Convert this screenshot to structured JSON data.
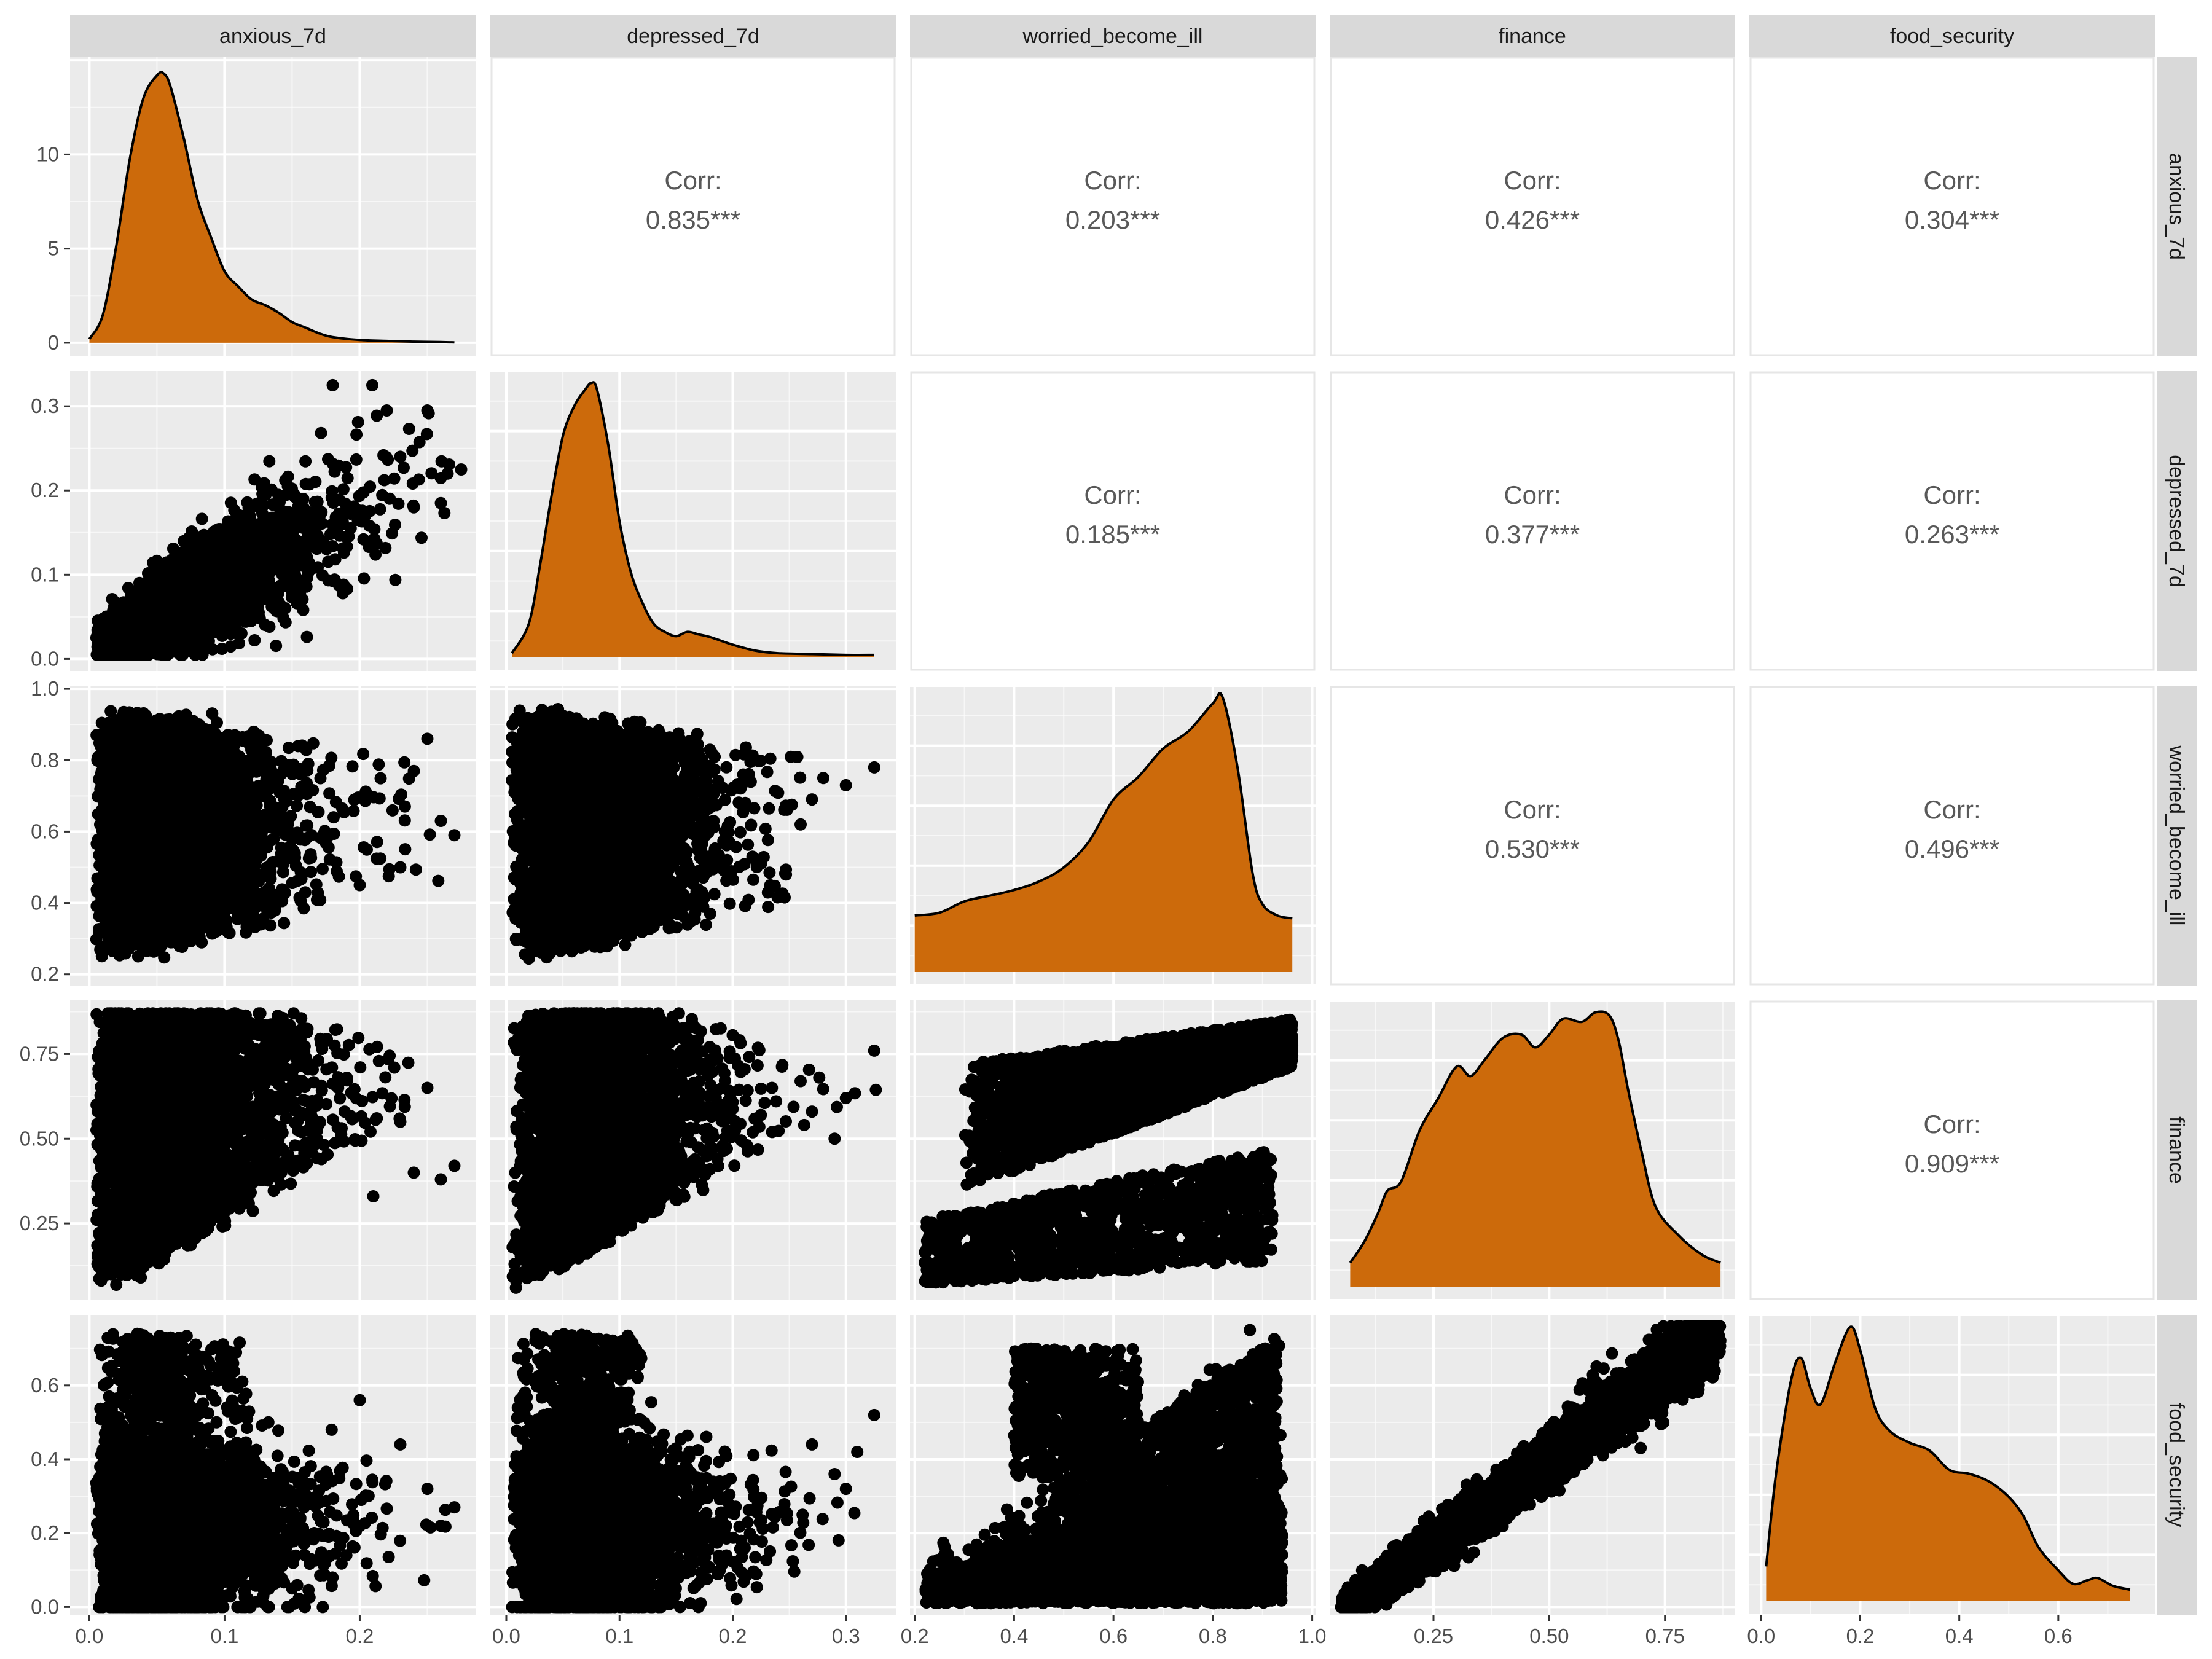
{
  "chart_data": {
    "type": "scatter-matrix",
    "variables": [
      "anxious_7d",
      "depressed_7d",
      "worried_become_ill",
      "finance",
      "food_security"
    ],
    "colors": {
      "panel_bg": "#ebebeb",
      "grid": "#ffffff",
      "strip_bg": "#d9d9d9",
      "density_fill": "#cc6a0b",
      "points": "#000000",
      "corr_text": "#595959",
      "corr_panel_border": "#e6e6e6"
    },
    "corr_label": "Corr:",
    "correlations": [
      {
        "row": 0,
        "col": 1,
        "value": "0.835***"
      },
      {
        "row": 0,
        "col": 2,
        "value": "0.203***"
      },
      {
        "row": 0,
        "col": 3,
        "value": "0.426***"
      },
      {
        "row": 0,
        "col": 4,
        "value": "0.304***"
      },
      {
        "row": 1,
        "col": 2,
        "value": "0.185***"
      },
      {
        "row": 1,
        "col": 3,
        "value": "0.377***"
      },
      {
        "row": 1,
        "col": 4,
        "value": "0.263***"
      },
      {
        "row": 2,
        "col": 3,
        "value": "0.530***"
      },
      {
        "row": 2,
        "col": 4,
        "value": "0.496***"
      },
      {
        "row": 3,
        "col": 4,
        "value": "0.909***"
      }
    ],
    "x_axes": [
      {
        "range": [
          -0.0143,
          0.2857
        ],
        "ticks": [
          0.0,
          0.1,
          0.2
        ],
        "labels": [
          "0.0",
          "0.1",
          "0.2"
        ]
      },
      {
        "range": [
          -0.0141,
          0.3441
        ],
        "ticks": [
          0.0,
          0.1,
          0.2,
          0.3
        ],
        "labels": [
          "0.0",
          "0.1",
          "0.2",
          "0.3"
        ]
      },
      {
        "range": [
          0.1905,
          1.0067
        ],
        "ticks": [
          0.2,
          0.4,
          0.6,
          0.8,
          1.0
        ],
        "labels": [
          "0.2",
          "0.4",
          "0.6",
          "0.8",
          "1.0"
        ]
      },
      {
        "range": [
          0.0257,
          0.9017
        ],
        "ticks": [
          0.25,
          0.5,
          0.75
        ],
        "labels": [
          "0.25",
          "0.50",
          "0.75"
        ]
      },
      {
        "range": [
          -0.024,
          0.795
        ],
        "ticks": [
          0.0,
          0.2,
          0.4,
          0.6
        ],
        "labels": [
          "0.0",
          "0.2",
          "0.4",
          "0.6"
        ]
      }
    ],
    "y_axes": [
      {
        "range": [
          -0.72,
          15.2
        ],
        "ticks": [
          0,
          5,
          10
        ],
        "labels": [
          "0",
          "5",
          "10"
        ]
      },
      {
        "range": [
          -0.0143,
          0.3417
        ],
        "ticks": [
          0.0,
          0.1,
          0.2,
          0.3
        ],
        "labels": [
          "0.0",
          "0.1",
          "0.2",
          "0.3"
        ]
      },
      {
        "range": [
          0.1685,
          1.0088
        ],
        "ticks": [
          0.2,
          0.4,
          0.6,
          0.8,
          1.0
        ],
        "labels": [
          "0.2",
          "0.4",
          "0.6",
          "0.8",
          "1.0"
        ]
      },
      {
        "range": [
          0.0235,
          0.9085
        ],
        "ticks": [
          0.25,
          0.5,
          0.75
        ],
        "labels": [
          "0.25",
          "0.50",
          "0.75"
        ]
      },
      {
        "range": [
          -0.021,
          0.791
        ],
        "ticks": [
          0.0,
          0.2,
          0.4,
          0.6
        ],
        "labels": [
          "0.0",
          "0.2",
          "0.4",
          "0.6"
        ]
      }
    ],
    "densities": [
      {
        "var": "anxious_7d",
        "x": [
          0.0,
          0.01,
          0.02,
          0.03,
          0.04,
          0.05,
          0.055,
          0.06,
          0.07,
          0.08,
          0.09,
          0.1,
          0.11,
          0.12,
          0.13,
          0.14,
          0.15,
          0.16,
          0.17,
          0.18,
          0.2,
          0.22,
          0.24,
          0.26,
          0.27
        ],
        "y": [
          0.2,
          1.5,
          5.2,
          9.8,
          13.0,
          14.2,
          14.3,
          13.6,
          10.8,
          7.6,
          5.6,
          3.8,
          3.0,
          2.3,
          2.0,
          1.6,
          1.1,
          0.8,
          0.5,
          0.3,
          0.15,
          0.1,
          0.06,
          0.04,
          0.02
        ]
      },
      {
        "var": "depressed_7d",
        "x": [
          0.005,
          0.02,
          0.03,
          0.04,
          0.05,
          0.06,
          0.07,
          0.075,
          0.08,
          0.09,
          0.1,
          0.11,
          0.12,
          0.13,
          0.14,
          0.15,
          0.16,
          0.17,
          0.18,
          0.2,
          0.22,
          0.24,
          0.27,
          0.3,
          0.325
        ],
        "y": [
          0.005,
          0.04,
          0.11,
          0.19,
          0.26,
          0.295,
          0.315,
          0.322,
          0.315,
          0.25,
          0.16,
          0.1,
          0.065,
          0.04,
          0.03,
          0.025,
          0.03,
          0.027,
          0.024,
          0.015,
          0.008,
          0.005,
          0.004,
          0.003,
          0.003
        ]
      },
      {
        "var": "worried_become_ill",
        "x": [
          0.2,
          0.25,
          0.3,
          0.35,
          0.4,
          0.45,
          0.5,
          0.55,
          0.6,
          0.65,
          0.7,
          0.75,
          0.8,
          0.82,
          0.85,
          0.88,
          0.9,
          0.93,
          0.96
        ],
        "y": [
          0.2,
          0.21,
          0.25,
          0.27,
          0.29,
          0.32,
          0.37,
          0.46,
          0.61,
          0.69,
          0.79,
          0.85,
          0.95,
          0.97,
          0.72,
          0.35,
          0.24,
          0.2,
          0.19
        ]
      },
      {
        "var": "finance",
        "x": [
          0.07,
          0.1,
          0.13,
          0.15,
          0.18,
          0.22,
          0.26,
          0.3,
          0.33,
          0.36,
          0.4,
          0.44,
          0.47,
          0.5,
          0.53,
          0.57,
          0.6,
          0.63,
          0.65,
          0.67,
          0.7,
          0.73,
          0.78,
          0.83,
          0.87
        ],
        "y": [
          0.075,
          0.14,
          0.23,
          0.3,
          0.33,
          0.49,
          0.59,
          0.69,
          0.66,
          0.71,
          0.78,
          0.79,
          0.75,
          0.79,
          0.84,
          0.83,
          0.86,
          0.85,
          0.77,
          0.62,
          0.42,
          0.25,
          0.16,
          0.1,
          0.075
        ]
      },
      {
        "var": "food_security",
        "x": [
          0.01,
          0.03,
          0.06,
          0.08,
          0.1,
          0.12,
          0.15,
          0.18,
          0.2,
          0.23,
          0.26,
          0.3,
          0.34,
          0.38,
          0.42,
          0.46,
          0.5,
          0.53,
          0.56,
          0.6,
          0.63,
          0.66,
          0.68,
          0.71,
          0.745
        ],
        "y": [
          0.09,
          0.33,
          0.57,
          0.63,
          0.55,
          0.51,
          0.62,
          0.71,
          0.65,
          0.5,
          0.44,
          0.41,
          0.39,
          0.34,
          0.33,
          0.31,
          0.27,
          0.22,
          0.14,
          0.08,
          0.045,
          0.055,
          0.06,
          0.04,
          0.03
        ]
      }
    ],
    "scatter_clouds": [
      {
        "row": 1,
        "col": 0,
        "n": 4200,
        "seed": 11,
        "model": "linear_hetero",
        "x_range": [
          0.005,
          0.27
        ],
        "x_mode": 0.055,
        "x_tail": 0.05,
        "intercept": 0.012,
        "slope": 0.83,
        "spread": 0.03,
        "y_clip": [
          0.005,
          0.325
        ],
        "outliers": [
          [
            0.24,
            0.18
          ],
          [
            0.265,
            0.22
          ],
          [
            0.275,
            0.225
          ],
          [
            0.26,
            0.185
          ],
          [
            0.22,
            0.295
          ],
          [
            0.18,
            0.325
          ],
          [
            0.25,
            0.295
          ],
          [
            0.23,
            0.24
          ]
        ]
      },
      {
        "row": 2,
        "col": 0,
        "n": 4600,
        "seed": 12,
        "model": "wedge",
        "x_range": [
          0.005,
          0.27
        ],
        "x_mode": 0.05,
        "x_tail": 0.045,
        "y_center": 0.62,
        "y_spread_low": 0.36,
        "y_spread_high": 0.3,
        "y_clip": [
          0.2,
          0.95
        ],
        "outliers": [
          [
            0.27,
            0.59
          ],
          [
            0.25,
            0.86
          ],
          [
            0.26,
            0.63
          ],
          [
            0.24,
            0.77
          ],
          [
            0.23,
            0.5
          ],
          [
            0.2,
            0.45
          ]
        ]
      },
      {
        "row": 2,
        "col": 1,
        "n": 4600,
        "seed": 13,
        "model": "wedge",
        "x_range": [
          0.005,
          0.33
        ],
        "x_mode": 0.065,
        "x_tail": 0.05,
        "y_center": 0.62,
        "y_spread_low": 0.36,
        "y_spread_high": 0.3,
        "y_clip": [
          0.2,
          0.95
        ],
        "outliers": [
          [
            0.325,
            0.78
          ],
          [
            0.3,
            0.73
          ],
          [
            0.28,
            0.75
          ],
          [
            0.27,
            0.69
          ],
          [
            0.26,
            0.62
          ]
        ]
      },
      {
        "row": 3,
        "col": 0,
        "n": 4600,
        "seed": 14,
        "model": "fan",
        "x_range": [
          0.005,
          0.27
        ],
        "x_mode": 0.05,
        "x_tail": 0.045,
        "base": 0.05,
        "slope_low": 2.2,
        "top": 0.86,
        "y_clip": [
          0.06,
          0.87
        ],
        "outliers": [
          [
            0.27,
            0.42
          ],
          [
            0.26,
            0.38
          ],
          [
            0.25,
            0.65
          ],
          [
            0.23,
            0.55
          ],
          [
            0.24,
            0.4
          ],
          [
            0.21,
            0.33
          ]
        ]
      },
      {
        "row": 3,
        "col": 1,
        "n": 4600,
        "seed": 15,
        "model": "fan",
        "x_range": [
          0.005,
          0.33
        ],
        "x_mode": 0.065,
        "x_tail": 0.05,
        "base": 0.05,
        "slope_low": 1.9,
        "top": 0.86,
        "y_clip": [
          0.06,
          0.87
        ],
        "outliers": [
          [
            0.325,
            0.76
          ],
          [
            0.3,
            0.62
          ],
          [
            0.29,
            0.5
          ],
          [
            0.27,
            0.58
          ],
          [
            0.26,
            0.67
          ]
        ]
      },
      {
        "row": 3,
        "col": 2,
        "n": 4600,
        "seed": 16,
        "model": "two_band",
        "x_range": [
          0.2,
          0.96
        ],
        "y_clip": [
          0.06,
          0.87
        ]
      },
      {
        "row": 4,
        "col": 0,
        "n": 4600,
        "seed": 17,
        "model": "lowfan",
        "x_range": [
          0.005,
          0.27
        ],
        "x_mode": 0.05,
        "x_tail": 0.045,
        "y_center": 0.22,
        "y_spread": 0.25,
        "y_clip": [
          0.0,
          0.75
        ],
        "outliers": [
          [
            0.27,
            0.27
          ],
          [
            0.26,
            0.22
          ],
          [
            0.25,
            0.32
          ],
          [
            0.23,
            0.44
          ],
          [
            0.2,
            0.56
          ]
        ]
      },
      {
        "row": 4,
        "col": 1,
        "n": 4600,
        "seed": 18,
        "model": "lowfan",
        "x_range": [
          0.005,
          0.33
        ],
        "x_mode": 0.065,
        "x_tail": 0.05,
        "y_center": 0.22,
        "y_spread": 0.25,
        "y_clip": [
          0.0,
          0.75
        ],
        "outliers": [
          [
            0.325,
            0.52
          ],
          [
            0.31,
            0.42
          ],
          [
            0.3,
            0.32
          ],
          [
            0.29,
            0.36
          ],
          [
            0.27,
            0.44
          ]
        ]
      },
      {
        "row": 4,
        "col": 2,
        "n": 4600,
        "seed": 19,
        "model": "two_band_fs",
        "x_range": [
          0.2,
          0.96
        ],
        "y_clip": [
          0.0,
          0.75
        ]
      },
      {
        "row": 4,
        "col": 3,
        "n": 4000,
        "seed": 20,
        "model": "linear",
        "x_range": [
          0.05,
          0.87
        ],
        "intercept": -0.07,
        "slope": 0.95,
        "spread": 0.035,
        "y_clip": [
          0.0,
          0.76
        ]
      }
    ]
  }
}
